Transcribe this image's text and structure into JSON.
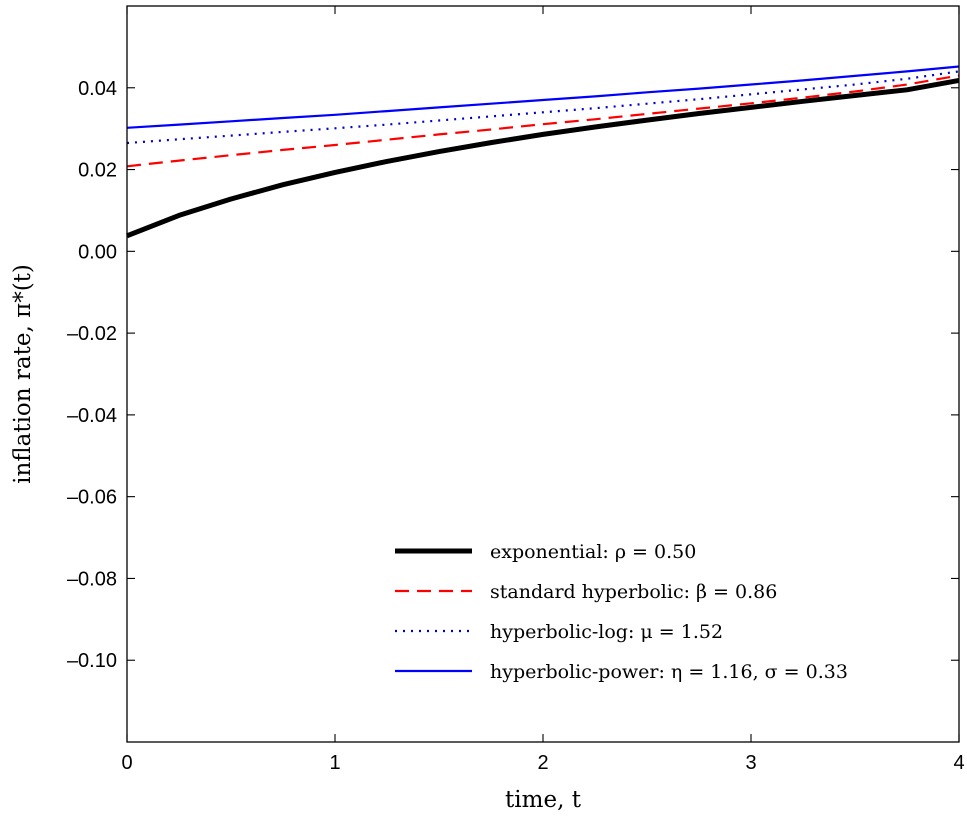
{
  "chart_data": {
    "type": "line",
    "xlabel": "time, t",
    "ylabel": "inflation rate, π*(t)",
    "xlim": [
      0,
      4
    ],
    "ylim": [
      -0.12,
      0.06
    ],
    "x_ticks": [
      0,
      1,
      2,
      3,
      4
    ],
    "x_tick_labels": [
      "0",
      "1",
      "2",
      "3",
      "4"
    ],
    "y_ticks": [
      -0.1,
      -0.08,
      -0.06,
      -0.04,
      -0.02,
      0.0,
      0.02,
      0.04
    ],
    "y_tick_labels": [
      "–0.10",
      "–0.08",
      "–0.06",
      "–0.04",
      "–0.02",
      "0.00",
      "0.02",
      "0.04"
    ],
    "grid": false,
    "legend_position": "bottom-right",
    "x": [
      0,
      0.25,
      0.5,
      0.75,
      1.0,
      1.25,
      1.5,
      1.75,
      2.0,
      2.25,
      2.5,
      2.75,
      3.0,
      3.25,
      3.5,
      3.75,
      4.0
    ],
    "series": [
      {
        "name": "exponential: ρ = 0.50",
        "color": "#000000",
        "style": "solid-thick",
        "values": [
          0.0038,
          0.0088,
          0.0128,
          0.0163,
          0.0193,
          0.022,
          0.0244,
          0.0266,
          0.0286,
          0.0304,
          0.0321,
          0.0337,
          0.0352,
          0.0367,
          0.0381,
          0.0395,
          0.0418
        ]
      },
      {
        "name": "standard hyperbolic: β = 0.86",
        "color": "#ff0000",
        "style": "dashed",
        "values": [
          0.0208,
          0.0222,
          0.0235,
          0.0248,
          0.026,
          0.0273,
          0.0286,
          0.0298,
          0.0311,
          0.0323,
          0.0336,
          0.0349,
          0.0362,
          0.0376,
          0.0391,
          0.0408,
          0.043
        ]
      },
      {
        "name": "hyperbolic-log: μ = 1.52",
        "color": "#0000cc",
        "style": "dotted",
        "values": [
          0.0265,
          0.0274,
          0.0283,
          0.0292,
          0.0301,
          0.031,
          0.032,
          0.033,
          0.034,
          0.035,
          0.0361,
          0.0372,
          0.0384,
          0.0396,
          0.0408,
          0.0422,
          0.044
        ]
      },
      {
        "name": "hyperbolic-power: η = 1.16, σ = 0.33",
        "color": "#0000ff",
        "style": "solid-thin",
        "values": [
          0.0302,
          0.031,
          0.0318,
          0.0326,
          0.0334,
          0.0343,
          0.0352,
          0.0361,
          0.037,
          0.0379,
          0.0389,
          0.0398,
          0.0408,
          0.0418,
          0.0429,
          0.044,
          0.0452
        ]
      }
    ]
  }
}
